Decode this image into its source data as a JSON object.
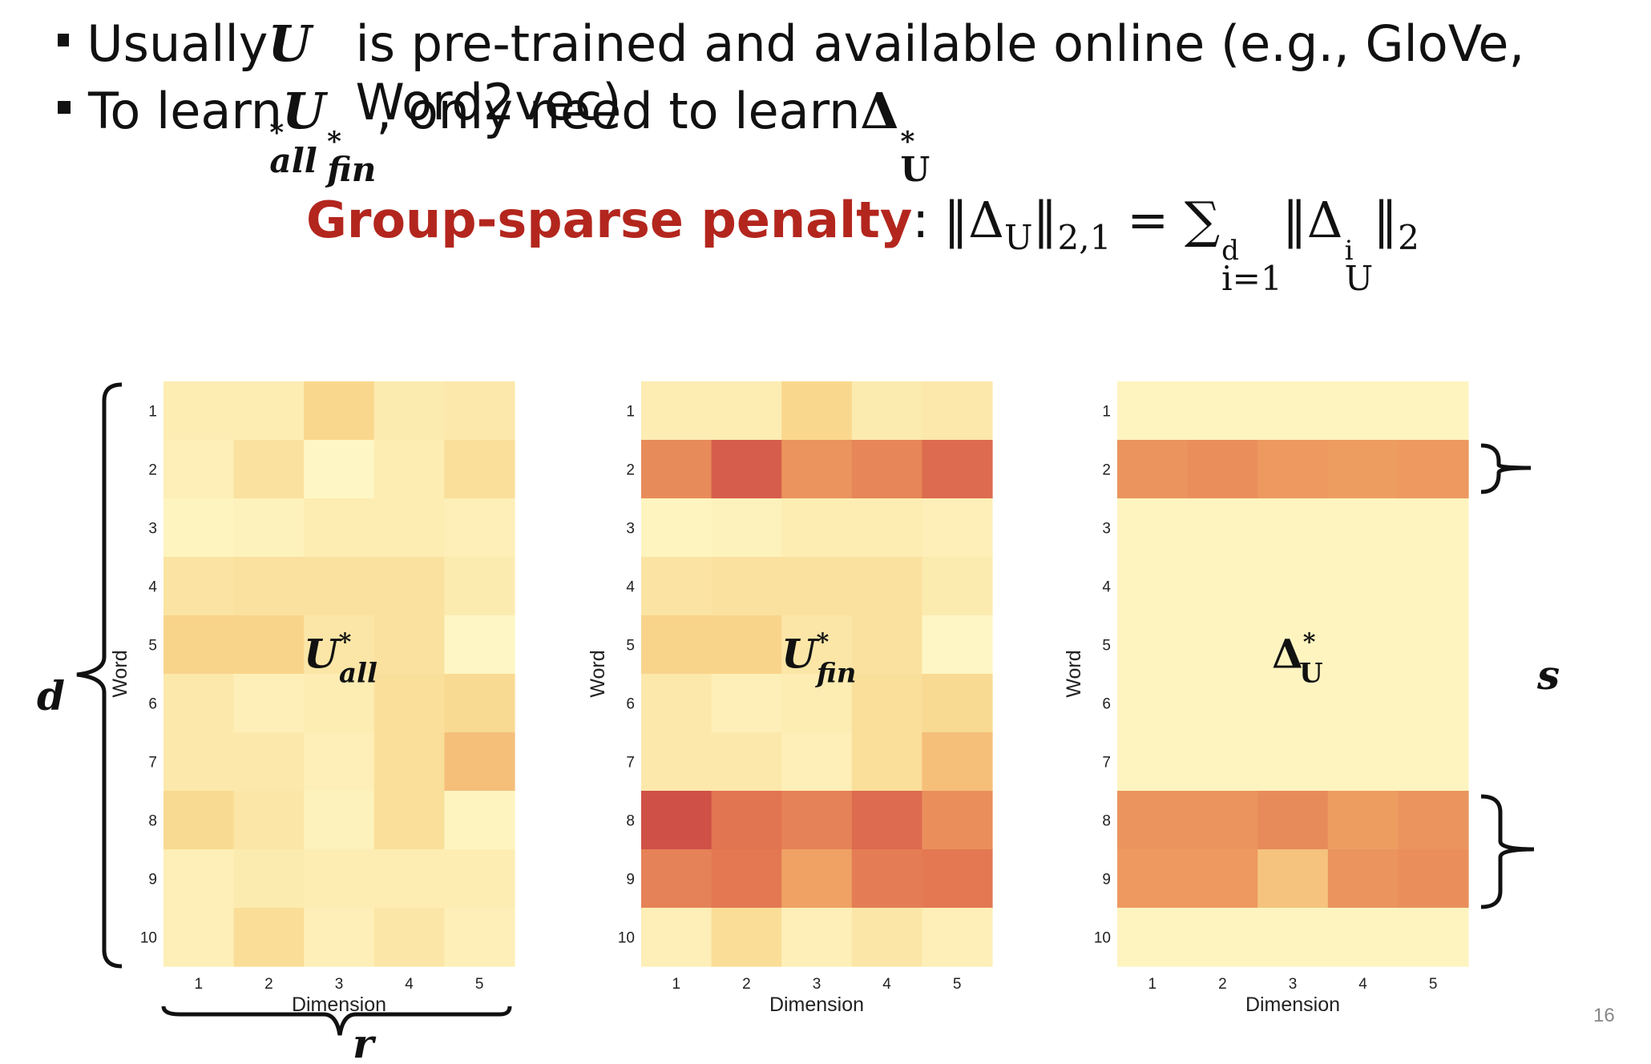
{
  "bullets": {
    "line1": {
      "pre": "Usually ",
      "var": "U",
      "sup": "*",
      "sub": "all",
      "post": " is pre-trained and available online (e.g., GloVe, Word2vec)"
    },
    "line2": {
      "pre": "To learn ",
      "var": "U",
      "sup": "*",
      "sub": "fin",
      "post": ", only need to learn ",
      "var2": "Δ",
      "var2_sup": "*",
      "var2_sub": "U"
    }
  },
  "penalty": {
    "label": "Group-sparse penalty",
    "colon": ":",
    "lhs": "‖Δ",
    "lhs_sub": "U",
    "lhs_norm": "‖",
    "lhs_norm_sub": "2,1",
    "eq": " = ∑",
    "sum_sub": "i=1",
    "sum_sup": "d",
    "rhs": "‖Δ",
    "rhs_sub": "U",
    "rhs_sup": "i",
    "rhs_norm": "‖",
    "rhs_norm_sub": "2"
  },
  "annotations": {
    "d": "d",
    "r": "r",
    "s": "s"
  },
  "page_number": "16",
  "colors": {
    "penalty_label": "#b3261e"
  },
  "chart_data": [
    {
      "type": "heatmap",
      "overlay_label": {
        "var": "U",
        "sup": "*",
        "sub": "all"
      },
      "xlabel": "Dimension",
      "ylabel": "Word",
      "x_ticks": [
        "1",
        "2",
        "3",
        "4",
        "5"
      ],
      "y_ticks": [
        "1",
        "2",
        "3",
        "4",
        "5",
        "6",
        "7",
        "8",
        "9",
        "10"
      ],
      "values": [
        [
          0.12,
          0.12,
          0.3,
          0.14,
          0.16
        ],
        [
          0.1,
          0.22,
          0.04,
          0.12,
          0.24
        ],
        [
          0.06,
          0.08,
          0.12,
          0.12,
          0.1
        ],
        [
          0.2,
          0.22,
          0.22,
          0.22,
          0.14
        ],
        [
          0.32,
          0.32,
          0.18,
          0.22,
          0.04
        ],
        [
          0.16,
          0.1,
          0.12,
          0.24,
          0.28
        ],
        [
          0.16,
          0.16,
          0.1,
          0.24,
          0.42
        ],
        [
          0.28,
          0.18,
          0.08,
          0.24,
          0.06
        ],
        [
          0.1,
          0.14,
          0.12,
          0.12,
          0.12
        ],
        [
          0.1,
          0.26,
          0.1,
          0.18,
          0.1
        ]
      ]
    },
    {
      "type": "heatmap",
      "overlay_label": {
        "var": "U",
        "sup": "*",
        "sub": "fin"
      },
      "xlabel": "Dimension",
      "ylabel": "Word",
      "x_ticks": [
        "1",
        "2",
        "3",
        "4",
        "5"
      ],
      "y_ticks": [
        "1",
        "2",
        "3",
        "4",
        "5",
        "6",
        "7",
        "8",
        "9",
        "10"
      ],
      "values": [
        [
          0.12,
          0.12,
          0.3,
          0.14,
          0.16
        ],
        [
          0.66,
          0.86,
          0.62,
          0.68,
          0.8
        ],
        [
          0.06,
          0.08,
          0.12,
          0.12,
          0.1
        ],
        [
          0.2,
          0.22,
          0.22,
          0.22,
          0.14
        ],
        [
          0.32,
          0.32,
          0.18,
          0.22,
          0.04
        ],
        [
          0.16,
          0.1,
          0.12,
          0.24,
          0.28
        ],
        [
          0.16,
          0.16,
          0.1,
          0.24,
          0.42
        ],
        [
          0.92,
          0.76,
          0.7,
          0.8,
          0.64
        ],
        [
          0.7,
          0.74,
          0.56,
          0.72,
          0.74
        ],
        [
          0.1,
          0.26,
          0.1,
          0.18,
          0.1
        ]
      ]
    },
    {
      "type": "heatmap",
      "overlay_label": {
        "var": "Δ",
        "sup": "*",
        "sub": "U"
      },
      "xlabel": "Dimension",
      "ylabel": "Word",
      "x_ticks": [
        "1",
        "2",
        "3",
        "4",
        "5"
      ],
      "y_ticks": [
        "1",
        "2",
        "3",
        "4",
        "5",
        "6",
        "7",
        "8",
        "9",
        "10"
      ],
      "values": [
        [
          0.06,
          0.06,
          0.06,
          0.06,
          0.06
        ],
        [
          0.62,
          0.64,
          0.6,
          0.58,
          0.6
        ],
        [
          0.06,
          0.06,
          0.06,
          0.06,
          0.06
        ],
        [
          0.06,
          0.06,
          0.06,
          0.06,
          0.06
        ],
        [
          0.06,
          0.06,
          0.06,
          0.06,
          0.06
        ],
        [
          0.06,
          0.06,
          0.06,
          0.06,
          0.06
        ],
        [
          0.06,
          0.06,
          0.06,
          0.06,
          0.06
        ],
        [
          0.62,
          0.62,
          0.66,
          0.58,
          0.62
        ],
        [
          0.6,
          0.6,
          0.4,
          0.62,
          0.64
        ],
        [
          0.06,
          0.06,
          0.06,
          0.06,
          0.06
        ]
      ]
    }
  ]
}
